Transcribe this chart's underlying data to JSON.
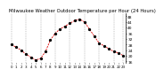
{
  "title": "Milwaukee Weather Outdoor Temperature per Hour (24 Hours)",
  "hours": [
    0,
    1,
    2,
    3,
    4,
    5,
    6,
    7,
    8,
    9,
    10,
    11,
    12,
    13,
    14,
    15,
    16,
    17,
    18,
    19,
    20,
    21,
    22,
    23
  ],
  "temps": [
    28,
    26,
    24,
    21,
    19,
    17,
    18,
    23,
    31,
    36,
    39,
    41,
    43,
    45,
    46,
    44,
    39,
    34,
    29,
    27,
    25,
    23,
    22,
    20
  ],
  "line_color": "#dd0000",
  "marker_color": "#000000",
  "bg_color": "#ffffff",
  "grid_color": "#888888",
  "ylim_min": 15,
  "ylim_max": 50,
  "yticks": [
    16,
    20,
    24,
    28,
    32,
    36,
    40,
    44,
    48
  ],
  "title_fontsize": 3.8,
  "tick_fontsize": 3.2,
  "vgrid_hours": [
    0,
    3,
    6,
    9,
    12,
    15,
    18,
    21,
    23
  ]
}
